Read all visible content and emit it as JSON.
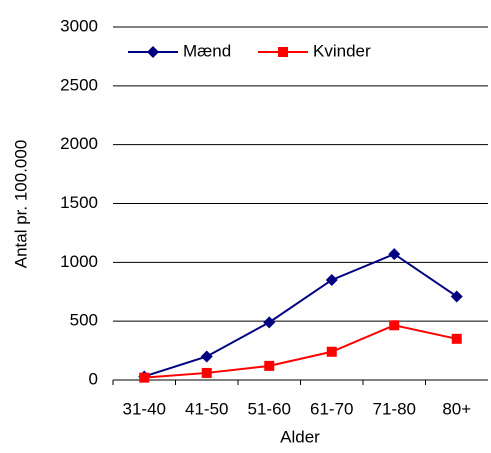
{
  "chart_data": {
    "type": "line",
    "categories": [
      "31-40",
      "41-50",
      "51-60",
      "61-70",
      "71-80",
      "80+"
    ],
    "series": [
      {
        "name": "Mænd",
        "color": "#000080",
        "marker": "diamond",
        "values": [
          30,
          200,
          490,
          850,
          1070,
          710
        ]
      },
      {
        "name": "Kvinder",
        "color": "#ff0000",
        "marker": "square",
        "values": [
          20,
          60,
          120,
          240,
          465,
          350
        ]
      }
    ],
    "ylim": [
      0,
      3000
    ],
    "yticks": [
      0,
      500,
      1000,
      1500,
      2000,
      2500,
      3000
    ],
    "grid": true,
    "ylabel": "Antal pr. 100.000",
    "xlabel": "Alder",
    "legend": "top"
  }
}
